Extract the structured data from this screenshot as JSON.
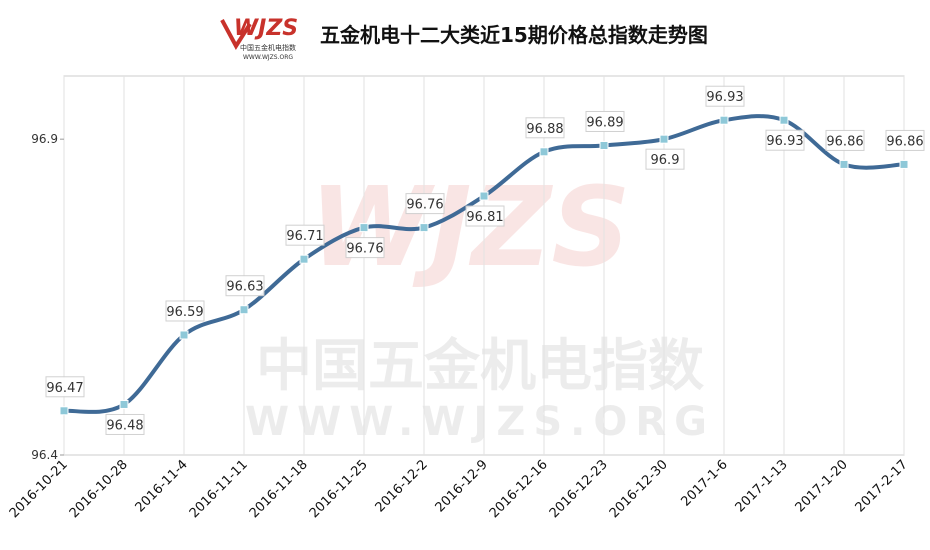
{
  "chart_data": {
    "type": "line",
    "title": "五金机电十二大类近15期价格总指数走势图",
    "logo": "WJZS",
    "logo_subtitle": "中国五金机电指数",
    "logo_url": "WWW.WJZS.ORG",
    "categories": [
      "2016-10-21",
      "2016-10-28",
      "2016-11-4",
      "2016-11-11",
      "2016-11-18",
      "2016-11-25",
      "2016-12-2",
      "2016-12-9",
      "2016-12-16",
      "2016-12-23",
      "2016-12-30",
      "2017-1-6",
      "2017-1-13",
      "2017-1-20",
      "2017-2-17"
    ],
    "series": [
      {
        "name": "价格总指数",
        "color": "#3f6a96",
        "values": [
          96.47,
          96.48,
          96.59,
          96.63,
          96.71,
          96.76,
          96.76,
          96.81,
          96.88,
          96.89,
          96.9,
          96.93,
          96.93,
          96.86,
          96.86
        ]
      }
    ],
    "ylim": [
      96.4,
      97.0
    ],
    "yticks": [
      96.4,
      96.9
    ],
    "grid": true
  }
}
